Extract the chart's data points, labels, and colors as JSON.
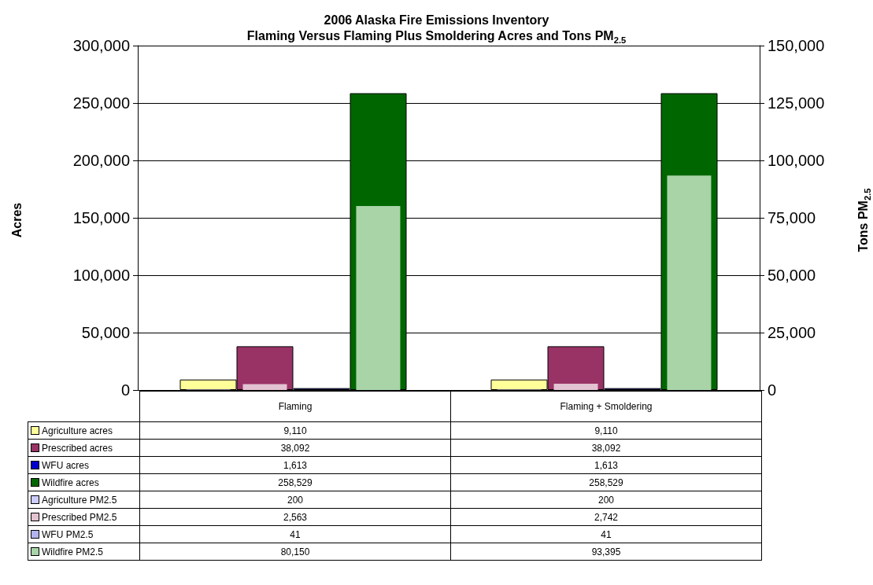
{
  "chart_data": {
    "type": "bar",
    "title": "2006 Alaska Fire Emissions Inventory",
    "subtitle": "Flaming Versus Flaming Plus Smoldering Acres and Tons PM$_{2.5}$",
    "ylabel": "Acres",
    "y2label": "Tons PM$_{2.5}$",
    "categories": [
      "Flaming",
      "Flaming + Smoldering"
    ],
    "series": [
      {
        "name": "Agriculture acres",
        "color": "#ffff99",
        "values": [
          9110,
          9110
        ],
        "value_labels": [
          "9,110",
          "9,110"
        ]
      },
      {
        "name": "Prescribed acres",
        "color": "#993366",
        "values": [
          38092,
          38092
        ],
        "value_labels": [
          "38,092",
          "38,092"
        ]
      },
      {
        "name": "WFU acres",
        "color": "#0000cc",
        "values": [
          1613,
          1613
        ],
        "value_labels": [
          "1,613",
          "1,613"
        ]
      },
      {
        "name": "Wildfire acres",
        "color": "#006600",
        "values": [
          258529,
          258529
        ],
        "value_labels": [
          "258,529",
          "258,529"
        ]
      },
      {
        "name": "Agriculture PM2.5",
        "color": "#ccccff",
        "values": [
          200,
          200
        ],
        "value_labels": [
          "200",
          "200"
        ],
        "axis": "y2"
      },
      {
        "name": "Prescribed PM2.5",
        "color": "#e3c2d1",
        "values": [
          2563,
          2742
        ],
        "value_labels": [
          "2,563",
          "2,742"
        ],
        "axis": "y2"
      },
      {
        "name": "WFU PM2.5",
        "color": "#b3b3f0",
        "values": [
          41,
          41
        ],
        "value_labels": [
          "41",
          "41"
        ],
        "axis": "y2"
      },
      {
        "name": "Wildfire PM2.5",
        "color": "#a8d4a8",
        "values": [
          80150,
          93395
        ],
        "value_labels": [
          "80,150",
          "93,395"
        ],
        "axis": "y2"
      }
    ],
    "ylim": [
      0,
      300000
    ],
    "yticks": [
      0,
      {
        "value": 50000,
        "label": "50,000"
      },
      {
        "value": 100000,
        "label": "100,000"
      },
      {
        "value": 150000,
        "label": "150,000"
      },
      {
        "value": 200000,
        "label": "200,000"
      },
      {
        "value": 250000,
        "label": "250,000"
      },
      {
        "value": 300000,
        "label": "300,000"
      }
    ],
    "y2lim": [
      0,
      150000
    ],
    "y2ticks": [
      0,
      {
        "value": 25000,
        "label": "25,000"
      },
      {
        "value": 50000,
        "label": "50,000"
      },
      {
        "value": 75000,
        "label": "75,000"
      },
      {
        "value": 100000,
        "label": "100,000"
      },
      {
        "value": 125000,
        "label": "125,000"
      },
      {
        "value": 150000,
        "label": "150,000"
      }
    ],
    "grid": "y",
    "legend": "bottom left",
    "tick_labels": "y"
  }
}
